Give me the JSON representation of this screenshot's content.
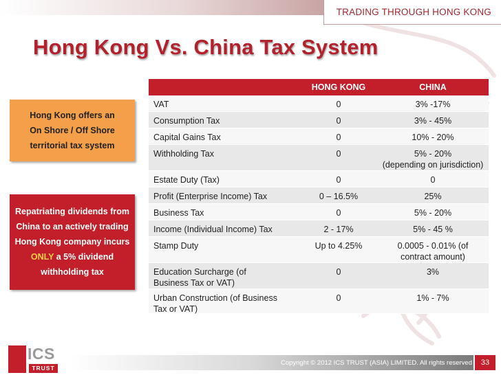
{
  "header": {
    "tag": "TRADING THROUGH HONG KONG"
  },
  "title": "Hong Kong Vs. China Tax System",
  "callout_orange": {
    "lines": [
      "Hong Kong offers an",
      "On Shore / Off Shore",
      "territorial tax system"
    ]
  },
  "callout_red": {
    "line1": "Repatriating dividends from",
    "line2": "China to an actively trading",
    "line3": "Hong Kong company incurs",
    "line4_highlight": "ONLY",
    "line4_rest": " a 5% dividend",
    "line5": "withholding tax"
  },
  "table": {
    "columns": [
      "",
      "HONG KONG",
      "CHINA"
    ],
    "rows": [
      {
        "label": [
          "VAT"
        ],
        "hk": [
          "0"
        ],
        "china": [
          "3% -17%"
        ]
      },
      {
        "label": [
          "Consumption Tax"
        ],
        "hk": [
          "0"
        ],
        "china": [
          "3% - 45%"
        ]
      },
      {
        "label": [
          "Capital Gains Tax"
        ],
        "hk": [
          "0"
        ],
        "china": [
          "10% - 20%"
        ]
      },
      {
        "label": [
          "Withholding Tax"
        ],
        "hk": [
          "0"
        ],
        "china": [
          "5% - 20%",
          "(depending on jurisdiction)"
        ]
      },
      {
        "label": [
          "Estate Duty (Tax)"
        ],
        "hk": [
          "0"
        ],
        "china": [
          "0"
        ]
      },
      {
        "label": [
          "Profit (Enterprise Income) Tax"
        ],
        "hk": [
          "0 – 16.5%"
        ],
        "china": [
          "25%"
        ]
      },
      {
        "label": [
          "Business Tax"
        ],
        "hk": [
          "0"
        ],
        "china": [
          "5% - 20%"
        ]
      },
      {
        "label": [
          "Income (Individual Income) Tax"
        ],
        "hk": [
          "2 - 17%"
        ],
        "china": [
          "5% - 45 %"
        ]
      },
      {
        "label": [
          "Stamp Duty"
        ],
        "hk": [
          "Up to 4.25%"
        ],
        "china": [
          "0.0005 - 0.01% (of",
          "contract amount)"
        ]
      },
      {
        "label": [
          "Education Surcharge (of",
          "Business Tax or VAT)"
        ],
        "hk": [
          "0"
        ],
        "china": [
          "3%"
        ]
      },
      {
        "label": [
          "Urban Construction (of Business",
          "Tax or VAT)"
        ],
        "hk": [
          "0"
        ],
        "china": [
          "1% - 7%"
        ]
      }
    ]
  },
  "footer": {
    "copyright": "Copyright © 2012 ICS TRUST (ASIA) LIMITED. All rights reserved",
    "page": "33"
  },
  "logo": {
    "ics": "ICS",
    "trust": "TRUST"
  },
  "colors": {
    "brand_red": "#c21f2a",
    "title_red": "#b3212c",
    "orange": "#f4a04a",
    "highlight_yellow": "#f6d046"
  }
}
